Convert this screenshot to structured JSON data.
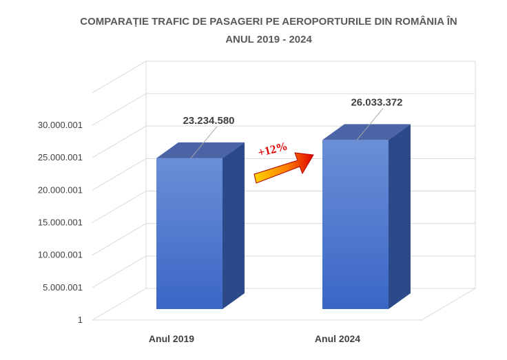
{
  "chart_data": {
    "type": "bar",
    "title_line1": "COMPARAȚIE TRAFIC DE PASAGERI PE AEROPORTURILE DIN ROMÂNIA ÎN",
    "title_line2": "ANUL 2019 - 2024",
    "categories": [
      "Anul 2019",
      "Anul 2024"
    ],
    "values": [
      23234580,
      26033372
    ],
    "data_labels": [
      "23.234.580",
      "26.033.372"
    ],
    "y_ticks": [
      1,
      5000001,
      10000001,
      15000001,
      20000001,
      25000001,
      30000001
    ],
    "y_tick_labels": [
      "1",
      "5.000.001",
      "10.000.001",
      "15.000.001",
      "20.000.001",
      "25.000.001",
      "30.000.001"
    ],
    "ylim": [
      1,
      35000001
    ],
    "grid": true,
    "legend": "none",
    "annotation": "+12%",
    "colors": {
      "bar_front_top": "#6b8fd6",
      "bar_front_bottom": "#3a66c6",
      "bar_top": "#4a64a6",
      "bar_side": "#2c4a8a",
      "arrow_start": "#ffd400",
      "arrow_end": "#e00000",
      "grid": "#d9d9d9"
    }
  }
}
